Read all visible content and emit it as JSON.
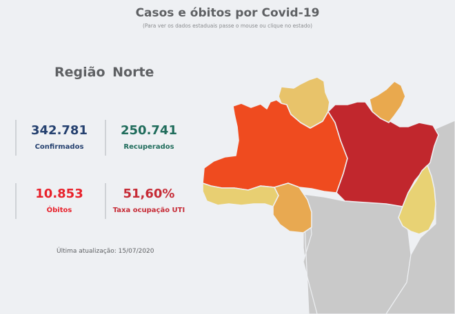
{
  "header": {
    "title": "Casos e óbitos por Covid-19",
    "subtitle": "(Para ver os dados estaduais passe o mouse ou clique no estado)"
  },
  "region": {
    "title": "Região  Norte"
  },
  "stats": {
    "confirmed": {
      "value": "342.781",
      "label": "Confirmados"
    },
    "recovered": {
      "value": "250.741",
      "label": "Recuperados"
    },
    "deaths": {
      "value": "10.853",
      "label": "Óbitos"
    },
    "icu": {
      "value": "51,60%",
      "label": "Taxa ocupação UTI"
    }
  },
  "footer": {
    "updated": "Última atualização: 15/07/2020"
  },
  "map": {
    "colors": {
      "amazonas": "#ef4b1f",
      "para": "#c1272d",
      "roraima": "#e8c36a",
      "amapa": "#e9a94e",
      "acre": "#e8cf72",
      "rondonia": "#e8a951",
      "tocantins": "#e8d274",
      "neighbors": "#c9c9c9",
      "borders": "#eef0f3"
    }
  }
}
